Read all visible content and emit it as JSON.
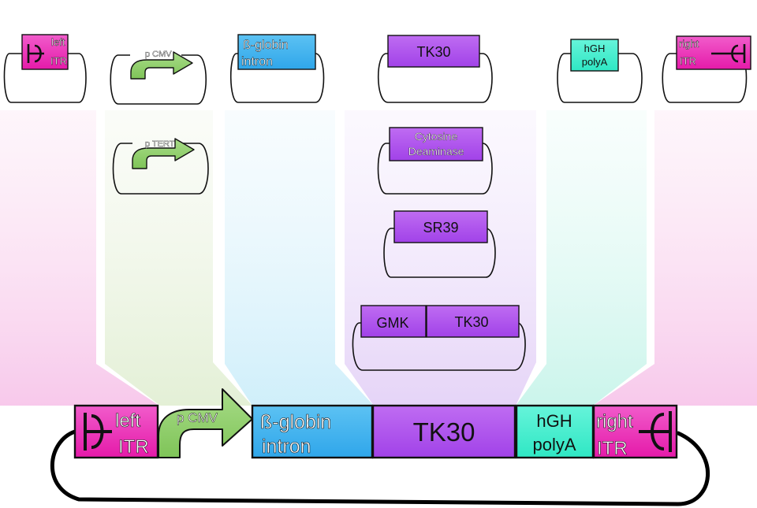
{
  "colors": {
    "itr": "#ee22bb",
    "promoter": "#88cc66",
    "intron": "#33aaee",
    "gene": "#aa44ee",
    "polya": "#33eecc",
    "outline": "#111111"
  },
  "top_parts": {
    "left_itr": [
      "left",
      "ITR"
    ],
    "cmv": "p CMV",
    "intron": [
      "ß-globin",
      "intron"
    ],
    "tk30": "TK30",
    "polya": [
      "hGH",
      "polyA"
    ],
    "right_itr": [
      "right",
      "ITR"
    ]
  },
  "alternatives": {
    "tert": "p TERT",
    "cytosine_deaminase": [
      "Cytosine",
      "Deaminase"
    ],
    "sr39": "SR39",
    "gmk": "GMK",
    "tk30": "TK30"
  },
  "construct": {
    "left_itr": [
      "left",
      "ITR"
    ],
    "cmv": "p CMV",
    "intron": [
      "ß-globin",
      "intron"
    ],
    "tk30": "TK30",
    "polya": [
      "hGH",
      "polyA"
    ],
    "right_itr": [
      "right",
      "ITR"
    ]
  }
}
